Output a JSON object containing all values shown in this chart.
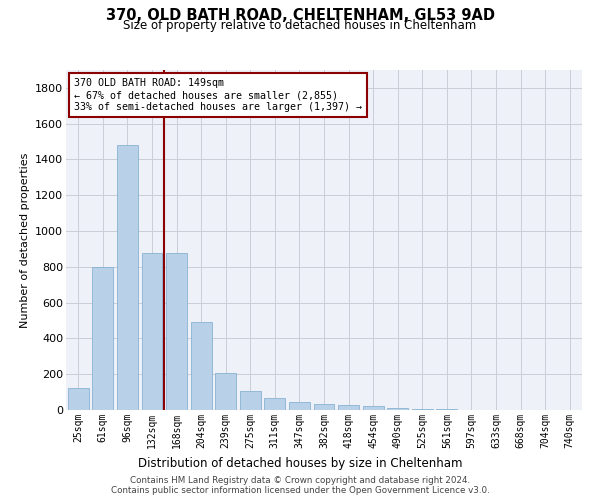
{
  "title": "370, OLD BATH ROAD, CHELTENHAM, GL53 9AD",
  "subtitle": "Size of property relative to detached houses in Cheltenham",
  "xlabel": "Distribution of detached houses by size in Cheltenham",
  "ylabel": "Number of detached properties",
  "categories": [
    "25sqm",
    "61sqm",
    "96sqm",
    "132sqm",
    "168sqm",
    "204sqm",
    "239sqm",
    "275sqm",
    "311sqm",
    "347sqm",
    "382sqm",
    "418sqm",
    "454sqm",
    "490sqm",
    "525sqm",
    "561sqm",
    "597sqm",
    "633sqm",
    "668sqm",
    "704sqm",
    "740sqm"
  ],
  "values": [
    125,
    800,
    1480,
    880,
    880,
    490,
    205,
    105,
    65,
    45,
    35,
    30,
    25,
    10,
    5,
    3,
    2,
    2,
    1,
    1,
    1
  ],
  "bar_color": "#b8d0e8",
  "bar_edge_color": "#7aaacf",
  "vline_x": 3.5,
  "vline_color": "#8b0000",
  "annotation_text": "370 OLD BATH ROAD: 149sqm\n← 67% of detached houses are smaller (2,855)\n33% of semi-detached houses are larger (1,397) →",
  "annotation_box_color": "#8b0000",
  "ylim": [
    0,
    1900
  ],
  "yticks": [
    0,
    200,
    400,
    600,
    800,
    1000,
    1200,
    1400,
    1600,
    1800
  ],
  "footer_line1": "Contains HM Land Registry data © Crown copyright and database right 2024.",
  "footer_line2": "Contains public sector information licensed under the Open Government Licence v3.0.",
  "bg_color": "#ffffff",
  "plot_bg_color": "#eef2f8",
  "grid_color": "#c8cdd8"
}
